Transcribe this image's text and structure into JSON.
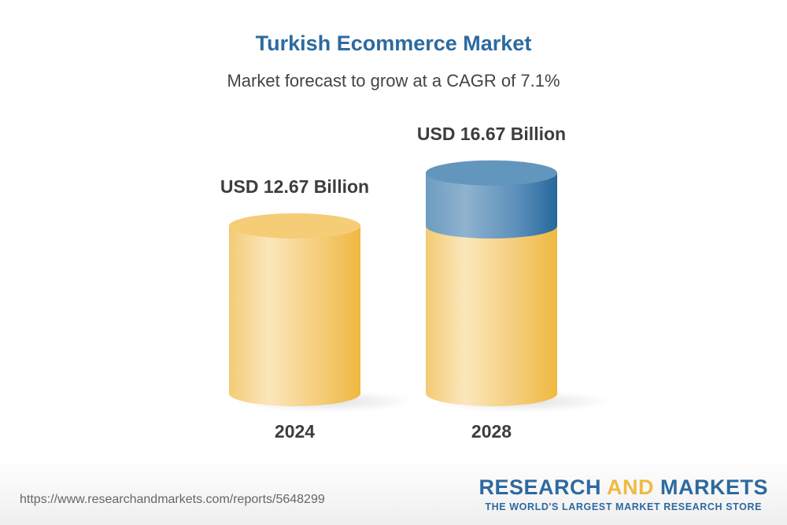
{
  "chart_data": {
    "type": "bar",
    "title": "Turkish Ecommerce Market",
    "subtitle": "Market forecast to grow at a CAGR of 7.1%",
    "categories": [
      "2024",
      "2028"
    ],
    "values": [
      12.67,
      16.67
    ],
    "data_labels": [
      "USD 12.67 Billion",
      "USD 16.67 Billion"
    ],
    "unit": "USD Billion",
    "style": "3d-cylinder",
    "colors": {
      "base": "#f0b940",
      "growth": "#2d6a9f"
    }
  },
  "footer": {
    "url": "https://www.researchandmarkets.com/reports/5648299",
    "logo_part1": "RESEARCH ",
    "logo_part2": "AND",
    "logo_part3": " MARKETS",
    "tagline": "THE WORLD'S LARGEST MARKET RESEARCH STORE"
  }
}
